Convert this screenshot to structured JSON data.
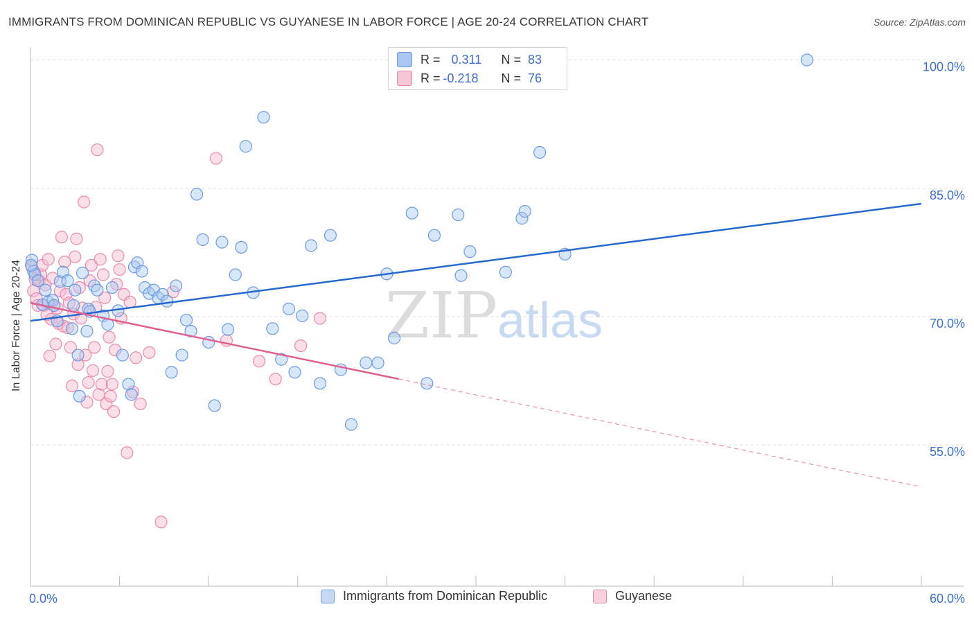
{
  "title": "IMMIGRANTS FROM DOMINICAN REPUBLIC VS GUYANESE IN LABOR FORCE | AGE 20-24 CORRELATION CHART",
  "source": "Source: ZipAtlas.com",
  "watermark": {
    "zip": "ZIP",
    "atlas": "atlas"
  },
  "legend_top": {
    "rows": [
      {
        "r_label": "R =",
        "r_value": "0.311",
        "n_label": "N =",
        "n_value": "83"
      },
      {
        "r_label": "R =",
        "r_value": "-0.218",
        "n_label": "N =",
        "n_value": "76"
      }
    ]
  },
  "legend_bottom": {
    "items": [
      "Immigrants from Dominican Republic",
      "Guyanese"
    ]
  },
  "colors": {
    "blue_fill": "#a9c7f2",
    "blue_stroke": "#6b9be0",
    "blue_line": "#2468d0",
    "pink_fill": "#f7b9cd",
    "pink_stroke": "#ea8aaa",
    "pink_line": "#e0608e",
    "grid": "#dddddd",
    "axis_label": "#3a6fd6"
  },
  "chart_data": {
    "type": "scatter",
    "title": "IMMIGRANTS FROM DOMINICAN REPUBLIC VS GUYANESE IN LABOR FORCE | AGE 20-24 CORRELATION CHART",
    "xlabel": "",
    "ylabel": "In Labor Force | Age 20-24",
    "xlim": [
      0,
      60
    ],
    "ylim": [
      38.5,
      101.5
    ],
    "x_tick_labels": [
      "0.0%",
      "60.0%"
    ],
    "y_ticks": [
      55,
      70,
      85,
      100
    ],
    "y_tick_labels": [
      "55.0%",
      "70.0%",
      "85.0%",
      "100.0%"
    ],
    "grid": true,
    "legend_position": "top-center",
    "series": [
      {
        "name": "Immigrants from Dominican Republic",
        "R": 0.311,
        "N": 83,
        "trend": {
          "x0": 0,
          "y0": 69.5,
          "x1": 60,
          "y1": 83.2,
          "dashed_from": null
        },
        "points": [
          [
            0.1,
            76.6
          ],
          [
            0.2,
            75.3
          ],
          [
            0.3,
            74.9
          ],
          [
            0.5,
            74.2
          ],
          [
            0.8,
            71.4
          ],
          [
            1.0,
            73.1
          ],
          [
            1.2,
            71.7
          ],
          [
            1.5,
            71.9
          ],
          [
            1.6,
            71.3
          ],
          [
            1.8,
            69.5
          ],
          [
            2.0,
            74.1
          ],
          [
            2.2,
            75.2
          ],
          [
            2.5,
            74.2
          ],
          [
            2.8,
            68.6
          ],
          [
            2.9,
            71.3
          ],
          [
            3.0,
            73.1
          ],
          [
            3.2,
            65.5
          ],
          [
            3.3,
            60.7
          ],
          [
            3.5,
            75.1
          ],
          [
            3.8,
            68.3
          ],
          [
            3.9,
            70.9
          ],
          [
            4.0,
            70.6
          ],
          [
            4.3,
            73.6
          ],
          [
            4.5,
            73.1
          ],
          [
            4.9,
            70.1
          ],
          [
            5.2,
            69.1
          ],
          [
            5.5,
            73.4
          ],
          [
            5.9,
            70.7
          ],
          [
            6.2,
            65.5
          ],
          [
            6.6,
            62.1
          ],
          [
            6.8,
            60.9
          ],
          [
            7.0,
            75.8
          ],
          [
            7.2,
            76.3
          ],
          [
            7.5,
            75.3
          ],
          [
            7.7,
            73.4
          ],
          [
            8.0,
            72.7
          ],
          [
            8.3,
            73.1
          ],
          [
            8.6,
            72.2
          ],
          [
            8.9,
            72.6
          ],
          [
            9.2,
            71.8
          ],
          [
            9.5,
            63.5
          ],
          [
            9.8,
            73.6
          ],
          [
            10.2,
            65.5
          ],
          [
            10.5,
            69.6
          ],
          [
            10.8,
            68.3
          ],
          [
            11.2,
            84.3
          ],
          [
            11.6,
            79.0
          ],
          [
            12.0,
            67.0
          ],
          [
            12.4,
            59.6
          ],
          [
            12.9,
            78.7
          ],
          [
            13.3,
            68.5
          ],
          [
            13.8,
            74.9
          ],
          [
            14.2,
            78.1
          ],
          [
            14.5,
            89.9
          ],
          [
            15.0,
            72.8
          ],
          [
            15.7,
            93.3
          ],
          [
            16.3,
            68.6
          ],
          [
            16.9,
            65.0
          ],
          [
            17.4,
            70.9
          ],
          [
            17.8,
            63.5
          ],
          [
            18.3,
            70.1
          ],
          [
            18.9,
            78.3
          ],
          [
            19.5,
            62.2
          ],
          [
            20.2,
            79.5
          ],
          [
            20.9,
            63.8
          ],
          [
            21.6,
            57.4
          ],
          [
            22.6,
            64.6
          ],
          [
            23.4,
            64.6
          ],
          [
            24.0,
            75.0
          ],
          [
            24.5,
            67.5
          ],
          [
            25.7,
            82.1
          ],
          [
            26.7,
            62.2
          ],
          [
            27.2,
            79.5
          ],
          [
            28.8,
            81.9
          ],
          [
            29.0,
            74.8
          ],
          [
            29.6,
            77.6
          ],
          [
            32.0,
            75.2
          ],
          [
            33.1,
            81.5
          ],
          [
            33.3,
            82.3
          ],
          [
            34.3,
            89.2
          ],
          [
            36.0,
            77.3
          ],
          [
            52.3,
            100.0
          ],
          [
            0.05,
            76.0
          ]
        ]
      },
      {
        "name": "Guyanese",
        "R": -0.218,
        "N": 76,
        "trend": {
          "x0": 0,
          "y0": 71.6,
          "x1": 60,
          "y1": 50.1,
          "dashed_from": 24.8
        },
        "points": [
          [
            0.1,
            75.8
          ],
          [
            0.2,
            73.0
          ],
          [
            0.3,
            74.4
          ],
          [
            0.4,
            72.1
          ],
          [
            0.5,
            71.3
          ],
          [
            0.6,
            74.2
          ],
          [
            0.7,
            74.9
          ],
          [
            0.8,
            76.0
          ],
          [
            0.9,
            71.3
          ],
          [
            1.0,
            73.7
          ],
          [
            1.1,
            70.2
          ],
          [
            1.2,
            76.7
          ],
          [
            1.3,
            65.4
          ],
          [
            1.4,
            69.7
          ],
          [
            1.5,
            74.5
          ],
          [
            1.6,
            71.3
          ],
          [
            1.7,
            66.8
          ],
          [
            1.8,
            71.0
          ],
          [
            1.9,
            69.2
          ],
          [
            2.0,
            73.0
          ],
          [
            2.1,
            79.3
          ],
          [
            2.2,
            68.9
          ],
          [
            2.3,
            76.4
          ],
          [
            2.4,
            72.6
          ],
          [
            2.5,
            68.7
          ],
          [
            2.6,
            71.6
          ],
          [
            2.7,
            66.4
          ],
          [
            2.8,
            61.9
          ],
          [
            2.9,
            70.3
          ],
          [
            3.0,
            77.0
          ],
          [
            3.1,
            79.1
          ],
          [
            3.2,
            64.4
          ],
          [
            3.3,
            73.4
          ],
          [
            3.4,
            69.8
          ],
          [
            3.5,
            71.0
          ],
          [
            3.6,
            83.4
          ],
          [
            3.7,
            65.5
          ],
          [
            3.8,
            60.0
          ],
          [
            3.9,
            62.3
          ],
          [
            4.0,
            74.2
          ],
          [
            4.1,
            76.0
          ],
          [
            4.2,
            63.7
          ],
          [
            4.3,
            66.4
          ],
          [
            4.4,
            71.1
          ],
          [
            4.5,
            89.5
          ],
          [
            4.6,
            60.9
          ],
          [
            4.7,
            76.7
          ],
          [
            4.8,
            62.1
          ],
          [
            4.9,
            74.9
          ],
          [
            5.0,
            72.2
          ],
          [
            5.1,
            59.8
          ],
          [
            5.2,
            63.6
          ],
          [
            5.3,
            67.6
          ],
          [
            5.4,
            60.7
          ],
          [
            5.5,
            62.1
          ],
          [
            5.6,
            58.9
          ],
          [
            5.7,
            66.1
          ],
          [
            5.8,
            73.8
          ],
          [
            5.9,
            77.1
          ],
          [
            6.0,
            75.5
          ],
          [
            6.1,
            69.8
          ],
          [
            6.3,
            72.6
          ],
          [
            6.5,
            54.1
          ],
          [
            6.7,
            71.7
          ],
          [
            6.9,
            61.2
          ],
          [
            7.1,
            65.2
          ],
          [
            7.4,
            59.8
          ],
          [
            8.0,
            65.8
          ],
          [
            8.8,
            46.0
          ],
          [
            9.6,
            72.9
          ],
          [
            12.5,
            88.5
          ],
          [
            13.2,
            67.2
          ],
          [
            15.4,
            64.8
          ],
          [
            16.5,
            62.7
          ],
          [
            18.2,
            66.6
          ],
          [
            19.5,
            69.8
          ]
        ]
      }
    ]
  }
}
